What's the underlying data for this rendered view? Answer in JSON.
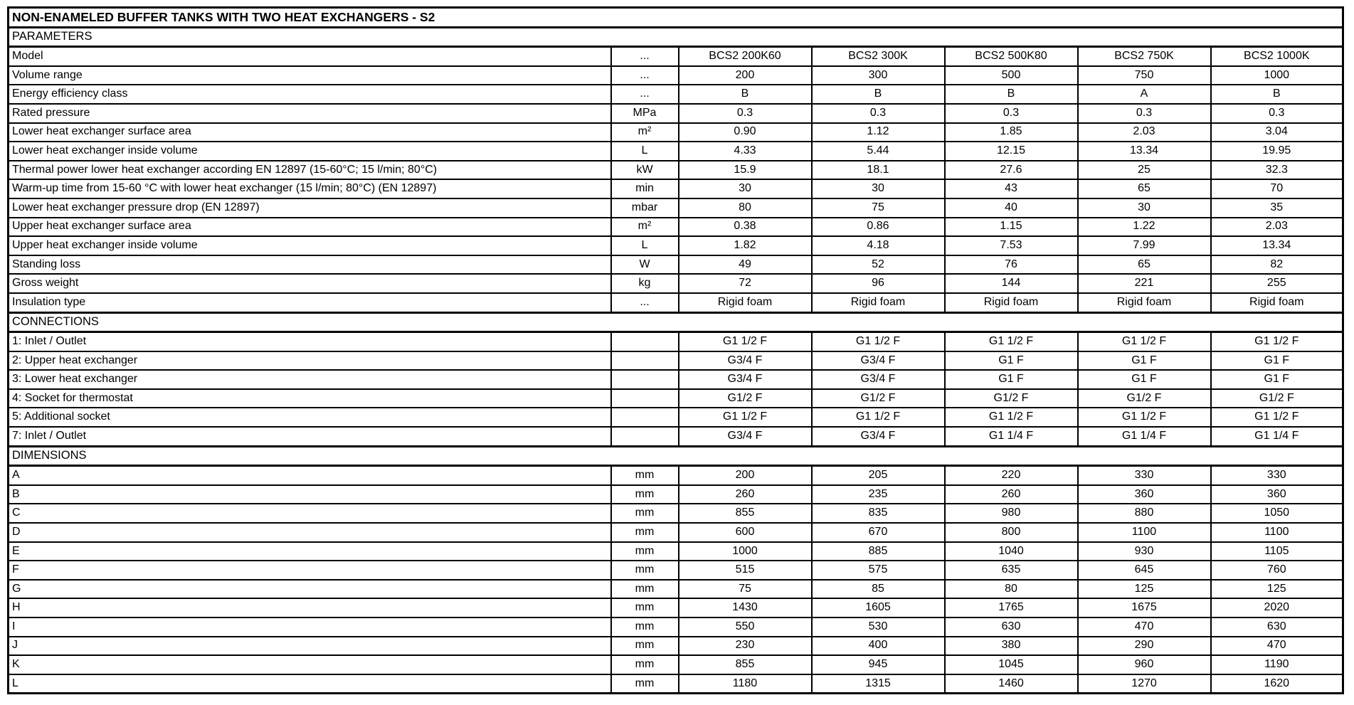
{
  "table": {
    "title": "NON-ENAMELED BUFFER TANKS WITH TWO HEAT EXCHANGERS - S2",
    "models": [
      "BCS2 200K60",
      "BCS2 300K",
      "BCS2 500K80",
      "BCS2 750K",
      "BCS2 1000K"
    ],
    "sections": [
      {
        "name": "PARAMETERS",
        "rows": [
          {
            "label": "Model",
            "unit": "...",
            "values": [
              "BCS2 200K60",
              "BCS2 300K",
              "BCS2 500K80",
              "BCS2 750K",
              "BCS2 1000K"
            ]
          },
          {
            "label": "Volume range",
            "unit": "...",
            "values": [
              "200",
              "300",
              "500",
              "750",
              "1000"
            ]
          },
          {
            "label": "Energy efficiency class",
            "unit": "...",
            "values": [
              "B",
              "B",
              "B",
              "A",
              "B"
            ]
          },
          {
            "label": "Rated pressure",
            "unit": "MPa",
            "values": [
              "0.3",
              "0.3",
              "0.3",
              "0.3",
              "0.3"
            ]
          },
          {
            "label": "Lower heat exchanger surface area",
            "unit": "m²",
            "values": [
              "0.90",
              "1.12",
              "1.85",
              "2.03",
              "3.04"
            ]
          },
          {
            "label": "Lower heat exchanger inside volume",
            "unit": "L",
            "values": [
              "4.33",
              "5.44",
              "12.15",
              "13.34",
              "19.95"
            ]
          },
          {
            "label": "Thermal power lower heat exchanger according EN 12897 (15-60°C; 15 l/min; 80°C)",
            "unit": "kW",
            "values": [
              "15.9",
              "18.1",
              "27.6",
              "25",
              "32.3"
            ]
          },
          {
            "label": "Warm-up time from 15-60 °C with lower heat exchanger (15 l/min; 80°C) (EN 12897)",
            "unit": "min",
            "values": [
              "30",
              "30",
              "43",
              "65",
              "70"
            ]
          },
          {
            "label": "Lower heat exchanger pressure drop (EN 12897)",
            "unit": "mbar",
            "values": [
              "80",
              "75",
              "40",
              "30",
              "35"
            ]
          },
          {
            "label": "Upper heat exchanger surface area",
            "unit": "m²",
            "values": [
              "0.38",
              "0.86",
              "1.15",
              "1.22",
              "2.03"
            ]
          },
          {
            "label": "Upper heat exchanger inside volume",
            "unit": "L",
            "values": [
              "1.82",
              "4.18",
              "7.53",
              "7.99",
              "13.34"
            ]
          },
          {
            "label": "Standing loss",
            "unit": "W",
            "values": [
              "49",
              "52",
              "76",
              "65",
              "82"
            ]
          },
          {
            "label": "Gross weight",
            "unit": "kg",
            "values": [
              "72",
              "96",
              "144",
              "221",
              "255"
            ]
          },
          {
            "label": "Insulation type",
            "unit": "...",
            "values": [
              "Rigid foam",
              "Rigid foam",
              "Rigid foam",
              "Rigid foam",
              "Rigid foam"
            ]
          }
        ]
      },
      {
        "name": "CONNECTIONS",
        "rows": [
          {
            "label": "1: Inlet / Outlet",
            "unit": "",
            "values": [
              "G1 1/2 F",
              "G1 1/2 F",
              "G1 1/2 F",
              "G1 1/2 F",
              "G1 1/2 F"
            ]
          },
          {
            "label": "2: Upper heat exchanger",
            "unit": "",
            "values": [
              "G3/4 F",
              "G3/4 F",
              "G1 F",
              "G1 F",
              "G1 F"
            ]
          },
          {
            "label": "3: Lower heat exchanger",
            "unit": "",
            "values": [
              "G3/4 F",
              "G3/4 F",
              "G1 F",
              "G1 F",
              "G1 F"
            ]
          },
          {
            "label": "4: Socket for thermostat",
            "unit": "",
            "values": [
              "G1/2 F",
              "G1/2 F",
              "G1/2 F",
              "G1/2 F",
              "G1/2 F"
            ]
          },
          {
            "label": "5: Additional socket",
            "unit": "",
            "values": [
              "G1 1/2 F",
              "G1 1/2 F",
              "G1 1/2 F",
              "G1 1/2 F",
              "G1 1/2 F"
            ]
          },
          {
            "label": "7: Inlet / Outlet",
            "unit": "",
            "values": [
              "G3/4 F",
              "G3/4 F",
              "G1 1/4 F",
              "G1 1/4 F",
              "G1 1/4 F"
            ]
          }
        ]
      },
      {
        "name": "DIMENSIONS",
        "rows": [
          {
            "label": "A",
            "unit": "mm",
            "values": [
              "200",
              "205",
              "220",
              "330",
              "330"
            ]
          },
          {
            "label": "B",
            "unit": "mm",
            "values": [
              "260",
              "235",
              "260",
              "360",
              "360"
            ]
          },
          {
            "label": "C",
            "unit": "mm",
            "values": [
              "855",
              "835",
              "980",
              "880",
              "1050"
            ]
          },
          {
            "label": "D",
            "unit": "mm",
            "values": [
              "600",
              "670",
              "800",
              "1100",
              "1100"
            ]
          },
          {
            "label": "E",
            "unit": "mm",
            "values": [
              "1000",
              "885",
              "1040",
              "930",
              "1105"
            ]
          },
          {
            "label": "F",
            "unit": "mm",
            "values": [
              "515",
              "575",
              "635",
              "645",
              "760"
            ]
          },
          {
            "label": "G",
            "unit": "mm",
            "values": [
              "75",
              "85",
              "80",
              "125",
              "125"
            ]
          },
          {
            "label": "H",
            "unit": "mm",
            "values": [
              "1430",
              "1605",
              "1765",
              "1675",
              "2020"
            ]
          },
          {
            "label": "I",
            "unit": "mm",
            "values": [
              "550",
              "530",
              "630",
              "470",
              "630"
            ]
          },
          {
            "label": "J",
            "unit": "mm",
            "values": [
              "230",
              "400",
              "380",
              "290",
              "470"
            ]
          },
          {
            "label": "K",
            "unit": "mm",
            "values": [
              "855",
              "945",
              "1045",
              "960",
              "1190"
            ]
          },
          {
            "label": "L",
            "unit": "mm",
            "values": [
              "1180",
              "1315",
              "1460",
              "1270",
              "1620"
            ]
          }
        ]
      }
    ]
  }
}
